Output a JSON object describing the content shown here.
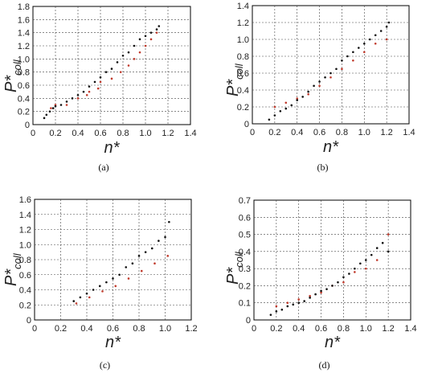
{
  "chart_data": [
    {
      "type": "scatter",
      "caption": "(a)",
      "xlabel": "n*",
      "ylabel_main": "P*",
      "ylabel_sub": "coll",
      "xlim": [
        0,
        1.4
      ],
      "ylim": [
        0,
        1.8
      ],
      "xticks": [
        "0",
        "0.2",
        "0.4",
        "0.6",
        "0.8",
        "1.0",
        "1.2",
        "1.4"
      ],
      "yticks": [
        "0",
        "0.2",
        "0.4",
        "0.6",
        "0.8",
        "1.0",
        "1.2",
        "1.4",
        "1.6",
        "1.8"
      ],
      "grid": true,
      "black_points": [
        [
          0.1,
          0.1
        ],
        [
          0.12,
          0.15
        ],
        [
          0.15,
          0.2
        ],
        [
          0.18,
          0.25
        ],
        [
          0.2,
          0.28
        ],
        [
          0.25,
          0.3
        ],
        [
          0.3,
          0.35
        ],
        [
          0.35,
          0.4
        ],
        [
          0.4,
          0.45
        ],
        [
          0.45,
          0.5
        ],
        [
          0.5,
          0.58
        ],
        [
          0.55,
          0.65
        ],
        [
          0.6,
          0.72
        ],
        [
          0.65,
          0.8
        ],
        [
          0.7,
          0.85
        ],
        [
          0.75,
          0.95
        ],
        [
          0.8,
          1.05
        ],
        [
          0.85,
          1.1
        ],
        [
          0.9,
          1.2
        ],
        [
          0.95,
          1.3
        ],
        [
          1.0,
          1.35
        ],
        [
          1.05,
          1.4
        ],
        [
          1.1,
          1.45
        ],
        [
          1.12,
          1.5
        ]
      ],
      "red_points": [
        [
          0.16,
          0.25
        ],
        [
          0.2,
          0.3
        ],
        [
          0.3,
          0.3
        ],
        [
          0.4,
          0.4
        ],
        [
          0.48,
          0.45
        ],
        [
          0.5,
          0.5
        ],
        [
          0.58,
          0.55
        ],
        [
          0.6,
          0.65
        ],
        [
          0.7,
          0.7
        ],
        [
          0.78,
          0.8
        ],
        [
          0.85,
          0.9
        ],
        [
          0.9,
          1.0
        ],
        [
          0.95,
          1.1
        ],
        [
          1.0,
          1.2
        ],
        [
          1.05,
          1.3
        ],
        [
          1.1,
          1.4
        ]
      ]
    },
    {
      "type": "scatter",
      "caption": "(b)",
      "xlabel": "n*",
      "ylabel_main": "P*",
      "ylabel_sub": "coll",
      "xlim": [
        0,
        1.4
      ],
      "ylim": [
        0,
        1.4
      ],
      "xticks": [
        "0",
        "0.2",
        "0.4",
        "0.6",
        "0.8",
        "1.0",
        "1.2",
        "1.4"
      ],
      "yticks": [
        "0",
        "0.2",
        "0.4",
        "0.6",
        "0.8",
        "1.0",
        "1.2",
        "1.4"
      ],
      "grid": true,
      "black_points": [
        [
          0.15,
          0.05
        ],
        [
          0.2,
          0.1
        ],
        [
          0.25,
          0.15
        ],
        [
          0.3,
          0.18
        ],
        [
          0.35,
          0.22
        ],
        [
          0.4,
          0.28
        ],
        [
          0.45,
          0.32
        ],
        [
          0.5,
          0.38
        ],
        [
          0.55,
          0.45
        ],
        [
          0.6,
          0.5
        ],
        [
          0.65,
          0.55
        ],
        [
          0.7,
          0.6
        ],
        [
          0.75,
          0.65
        ],
        [
          0.8,
          0.75
        ],
        [
          0.85,
          0.8
        ],
        [
          0.9,
          0.85
        ],
        [
          0.95,
          0.9
        ],
        [
          1.0,
          0.95
        ],
        [
          1.05,
          1.0
        ],
        [
          1.1,
          1.05
        ],
        [
          1.15,
          1.1
        ],
        [
          1.2,
          1.15
        ],
        [
          1.22,
          1.2
        ]
      ],
      "red_points": [
        [
          0.2,
          0.2
        ],
        [
          0.3,
          0.25
        ],
        [
          0.4,
          0.3
        ],
        [
          0.5,
          0.35
        ],
        [
          0.6,
          0.45
        ],
        [
          0.7,
          0.55
        ],
        [
          0.8,
          0.65
        ],
        [
          0.9,
          0.75
        ],
        [
          1.0,
          0.85
        ],
        [
          1.1,
          0.95
        ],
        [
          1.2,
          1.0
        ]
      ]
    },
    {
      "type": "scatter",
      "caption": "(c)",
      "xlabel": "n*",
      "ylabel_main": "P*",
      "ylabel_sub": "coll",
      "xlim": [
        0,
        1.2
      ],
      "ylim": [
        0,
        1.6
      ],
      "xticks": [
        "0",
        "0.2",
        "0.4",
        "0.6",
        "0.8",
        "1.0",
        "1.2"
      ],
      "yticks": [
        "0",
        "0.2",
        "0.4",
        "0.6",
        "0.8",
        "1.0",
        "1.2",
        "1.4",
        "1.6"
      ],
      "grid": true,
      "black_points": [
        [
          0.3,
          0.25
        ],
        [
          0.35,
          0.3
        ],
        [
          0.4,
          0.35
        ],
        [
          0.45,
          0.4
        ],
        [
          0.5,
          0.45
        ],
        [
          0.55,
          0.5
        ],
        [
          0.6,
          0.55
        ],
        [
          0.65,
          0.6
        ],
        [
          0.7,
          0.7
        ],
        [
          0.75,
          0.75
        ],
        [
          0.8,
          0.85
        ],
        [
          0.85,
          0.9
        ],
        [
          0.9,
          0.95
        ],
        [
          0.95,
          1.05
        ],
        [
          1.0,
          1.1
        ],
        [
          1.03,
          1.3
        ]
      ],
      "red_points": [
        [
          0.32,
          0.22
        ],
        [
          0.42,
          0.3
        ],
        [
          0.52,
          0.38
        ],
        [
          0.62,
          0.45
        ],
        [
          0.72,
          0.55
        ],
        [
          0.82,
          0.65
        ],
        [
          0.92,
          0.75
        ],
        [
          1.02,
          0.85
        ]
      ]
    },
    {
      "type": "scatter",
      "caption": "(d)",
      "xlabel": "n*",
      "ylabel_main": "P*",
      "ylabel_sub": "coll",
      "xlim": [
        0,
        1.4
      ],
      "ylim": [
        0,
        0.7
      ],
      "xticks": [
        "0",
        "0.2",
        "0.4",
        "0.6",
        "0.8",
        "1.0",
        "1.2",
        "1.4"
      ],
      "yticks": [
        "0",
        "0.1",
        "0.2",
        "0.3",
        "0.4",
        "0.5",
        "0.6",
        "0.7"
      ],
      "grid": true,
      "black_points": [
        [
          0.15,
          0.03
        ],
        [
          0.2,
          0.05
        ],
        [
          0.25,
          0.06
        ],
        [
          0.3,
          0.08
        ],
        [
          0.35,
          0.09
        ],
        [
          0.4,
          0.1
        ],
        [
          0.45,
          0.11
        ],
        [
          0.5,
          0.13
        ],
        [
          0.55,
          0.15
        ],
        [
          0.6,
          0.17
        ],
        [
          0.65,
          0.18
        ],
        [
          0.7,
          0.2
        ],
        [
          0.75,
          0.22
        ],
        [
          0.8,
          0.25
        ],
        [
          0.85,
          0.27
        ],
        [
          0.9,
          0.3
        ],
        [
          0.95,
          0.33
        ],
        [
          1.0,
          0.35
        ],
        [
          1.05,
          0.38
        ],
        [
          1.1,
          0.42
        ],
        [
          1.15,
          0.45
        ],
        [
          1.2,
          0.4
        ]
      ],
      "red_points": [
        [
          0.2,
          0.08
        ],
        [
          0.3,
          0.1
        ],
        [
          0.4,
          0.12
        ],
        [
          0.5,
          0.14
        ],
        [
          0.6,
          0.16
        ],
        [
          0.7,
          0.2
        ],
        [
          0.8,
          0.22
        ],
        [
          0.9,
          0.28
        ],
        [
          1.0,
          0.3
        ],
        [
          1.1,
          0.35
        ],
        [
          1.2,
          0.5
        ]
      ]
    }
  ]
}
